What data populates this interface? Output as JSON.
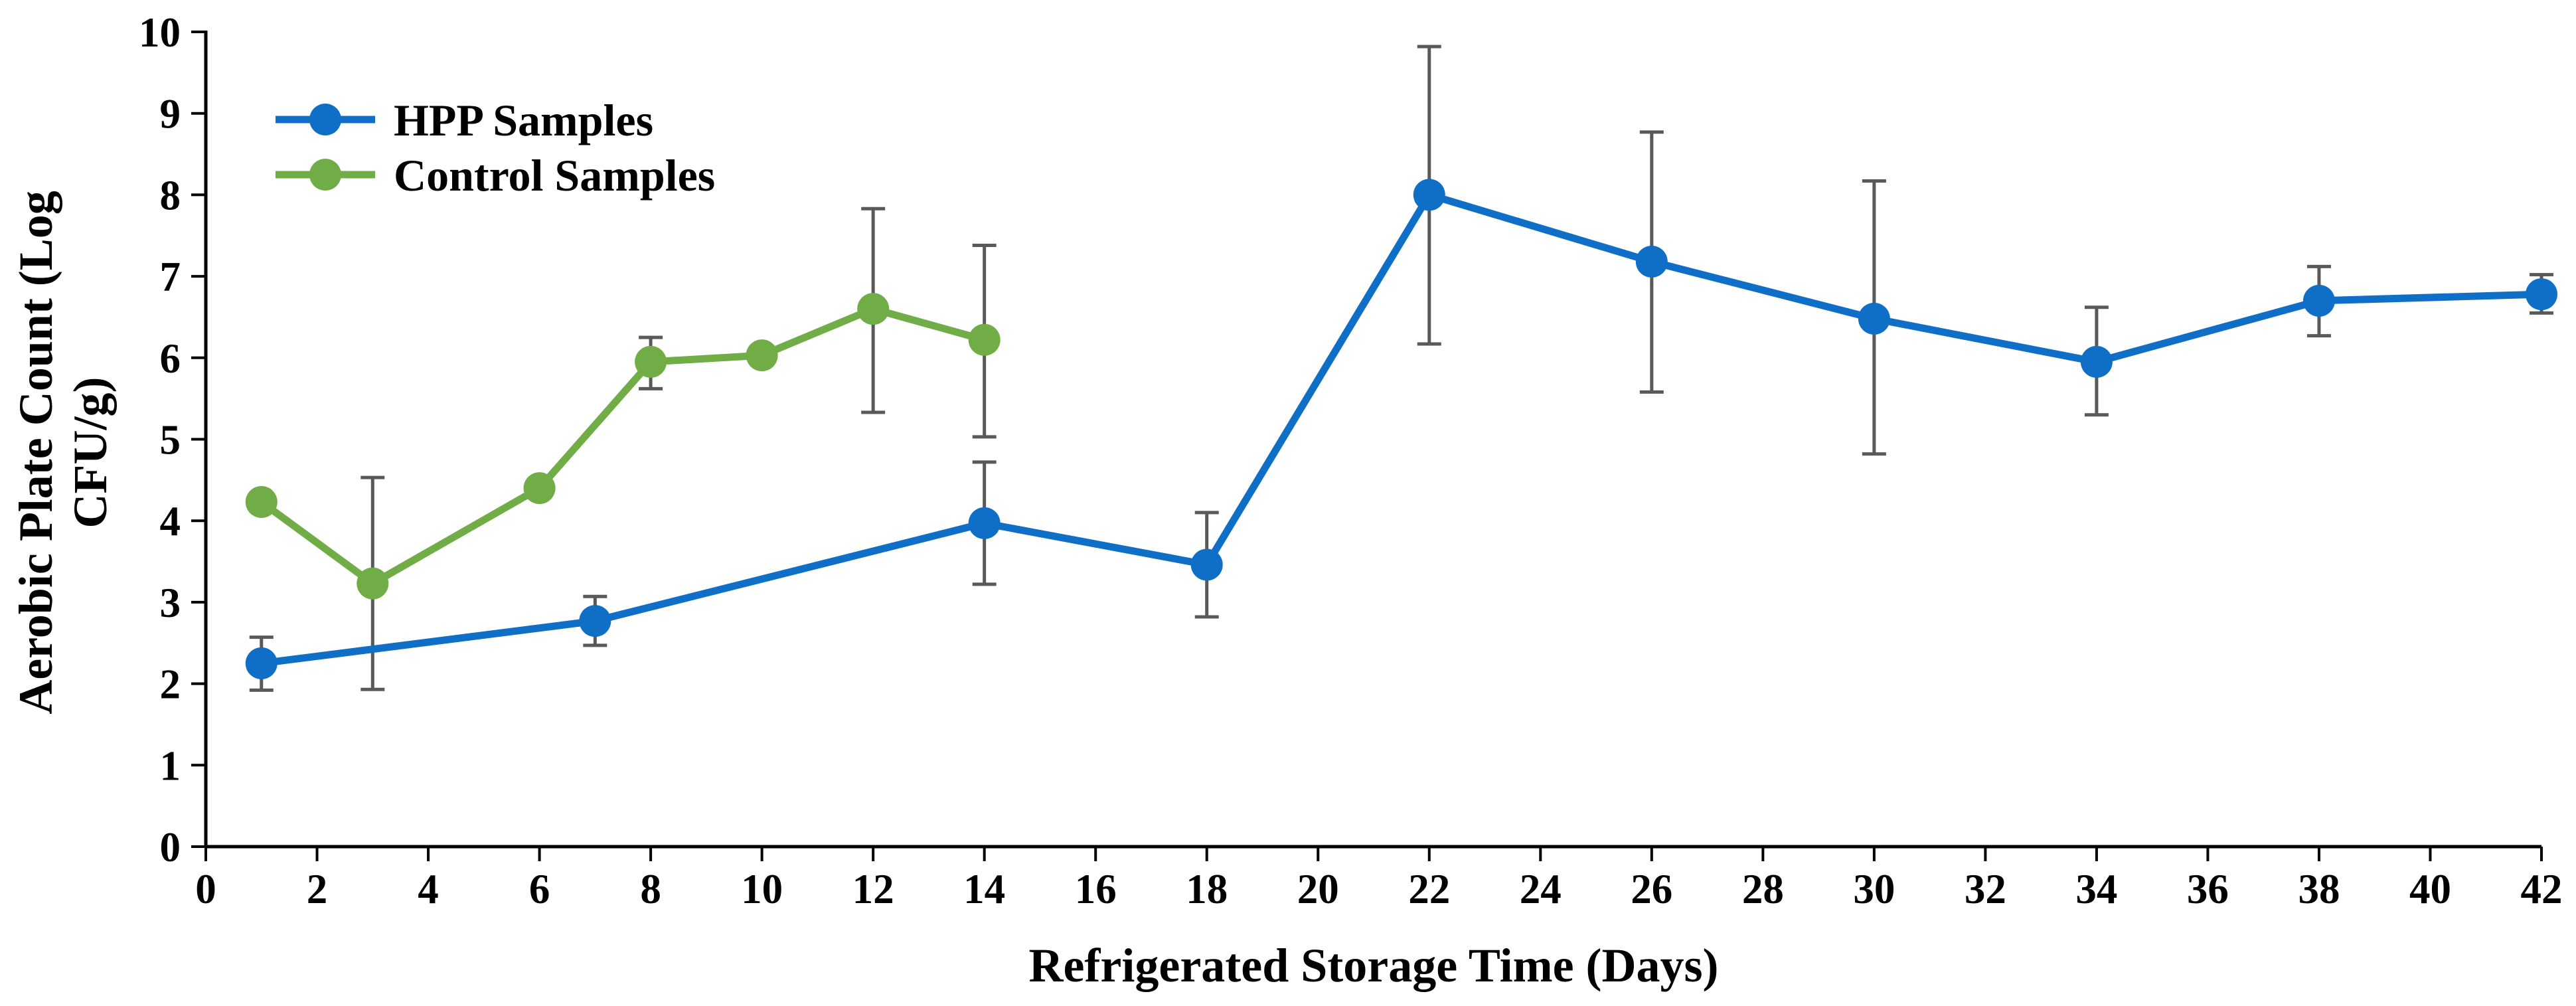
{
  "chart_data": {
    "type": "line",
    "title": "",
    "xlabel": "Refrigerated Storage Time (Days)",
    "ylabel_lines": [
      "Aerobic Plate Count (Log",
      "CFU/g)"
    ],
    "xlim": [
      0,
      42
    ],
    "ylim": [
      0,
      10
    ],
    "x_ticks": [
      0,
      2,
      4,
      6,
      8,
      10,
      12,
      14,
      16,
      18,
      20,
      22,
      24,
      26,
      28,
      30,
      32,
      34,
      36,
      38,
      40,
      42
    ],
    "y_ticks": [
      0,
      1,
      2,
      3,
      4,
      5,
      6,
      7,
      8,
      9,
      10
    ],
    "grid": false,
    "legend_position": "top-left",
    "series": [
      {
        "name": "HPP Samples",
        "color": "#0F6FC6",
        "x": [
          1,
          7,
          14,
          18,
          22,
          26,
          30,
          34,
          38,
          42
        ],
        "y": [
          2.25,
          2.77,
          3.97,
          3.46,
          8.0,
          7.18,
          6.48,
          5.95,
          6.7,
          6.78
        ],
        "err_low": [
          1.92,
          2.47,
          3.22,
          2.82,
          6.17,
          5.58,
          4.82,
          5.3,
          6.27,
          6.55
        ],
        "err_high": [
          2.57,
          3.07,
          4.72,
          4.1,
          9.82,
          8.77,
          8.17,
          6.62,
          7.12,
          7.02
        ]
      },
      {
        "name": "Control Samples",
        "color": "#70AD47",
        "x": [
          1,
          3,
          6,
          8,
          10,
          12,
          14
        ],
        "y": [
          4.23,
          3.23,
          4.4,
          5.95,
          6.03,
          6.6,
          6.22
        ],
        "err_low": [
          null,
          1.93,
          null,
          5.62,
          null,
          5.33,
          5.03
        ],
        "err_high": [
          null,
          4.53,
          null,
          6.25,
          null,
          7.83,
          7.38
        ]
      }
    ],
    "error_bar_color": "#595959"
  }
}
